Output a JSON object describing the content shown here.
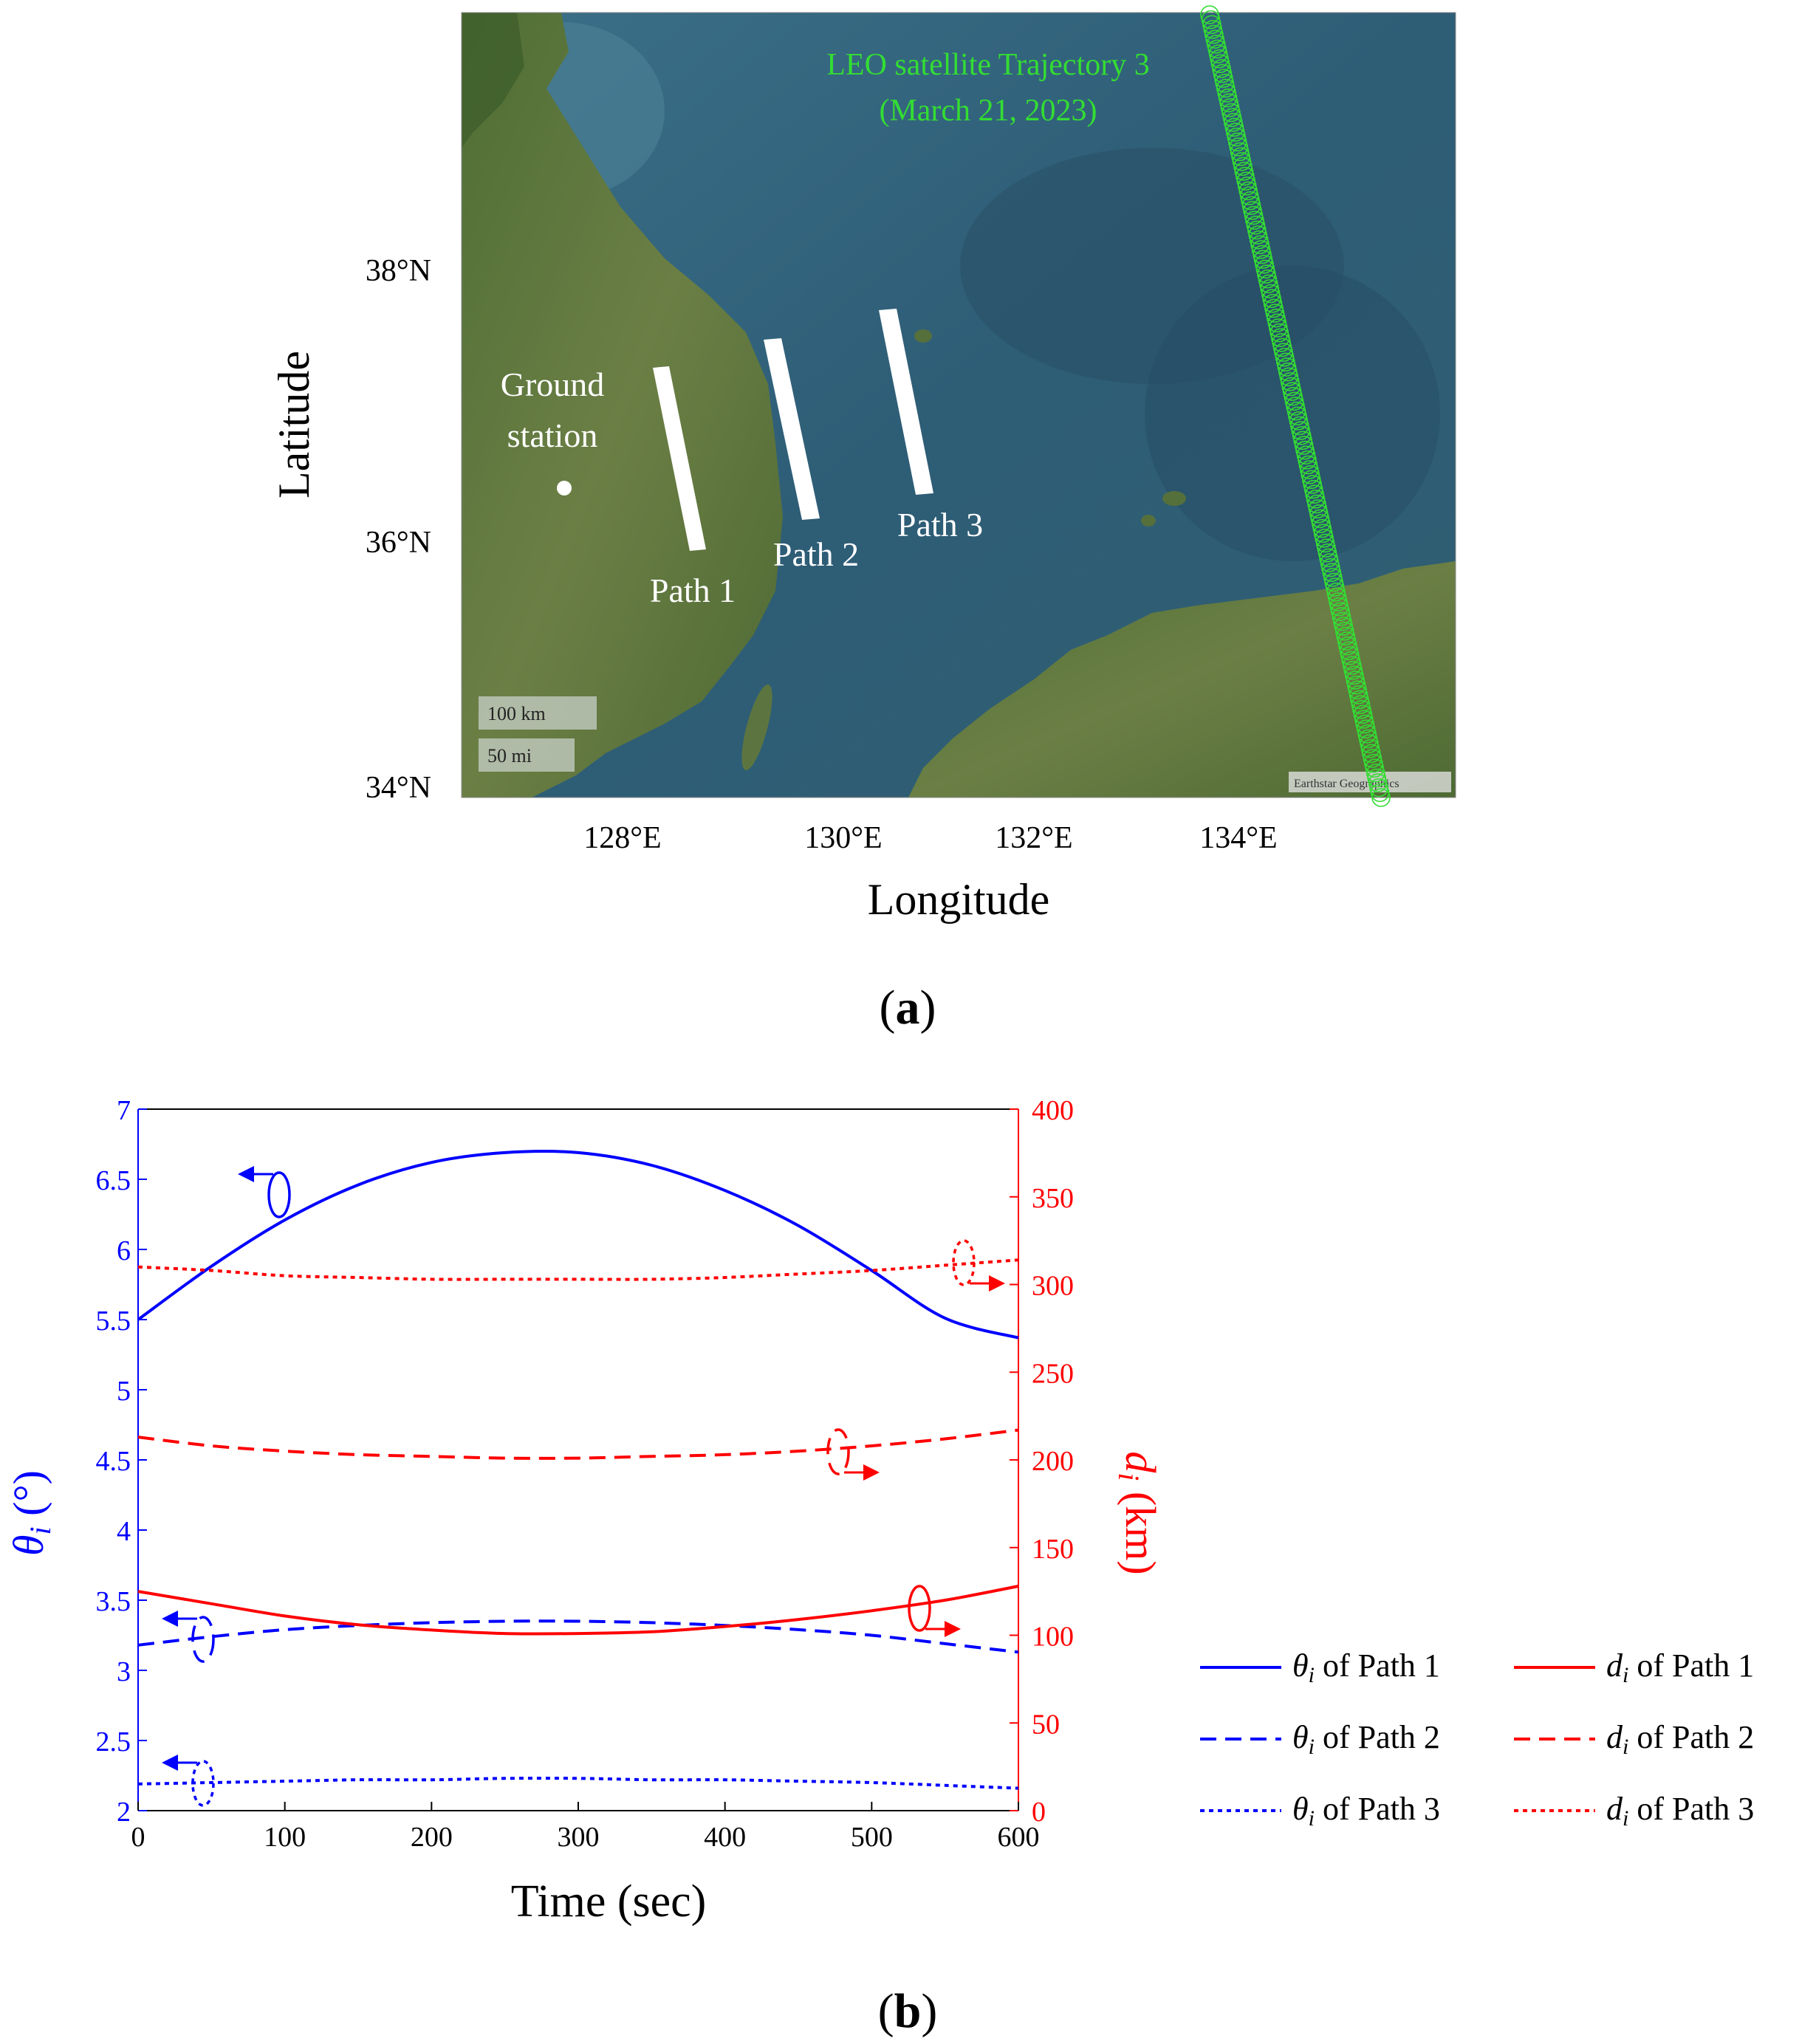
{
  "panel_a": {
    "label": "(a)",
    "xlabel": "Longitude",
    "ylabel": "Latitude",
    "lon_ticks": [
      "128°E",
      "130°E",
      "132°E",
      "134°E"
    ],
    "lat_ticks": [
      "38°N",
      "36°N",
      "34°N"
    ],
    "trajectory_label_1": "LEO satellite Trajectory 3",
    "trajectory_label_2": "(March 21, 2023)",
    "ground_station_1": "Ground",
    "ground_station_2": "station",
    "path1": "Path 1",
    "path2": "Path 2",
    "path3": "Path 3",
    "scale_km": "100 km",
    "scale_mi": "50 mi",
    "attribution": "Earthstar Geographics",
    "colors": {
      "sea": "#2f5f78",
      "land": "#5d7a3e",
      "trajectory": "#33dd33",
      "path": "#ffffff"
    }
  },
  "panel_b": {
    "label": "(b)",
    "xlabel": "Time (sec)",
    "ylabel_left": "θi (°)",
    "ylabel_right": "di (km)",
    "colors": {
      "left": "#0000ff",
      "right": "#ff0000"
    }
  },
  "chart_data": {
    "type": "line",
    "xlabel": "Time (sec)",
    "xlim": [
      0,
      600
    ],
    "xticks": [
      0,
      100,
      200,
      300,
      400,
      500,
      600
    ],
    "y_left": {
      "label": "θi (°)",
      "lim": [
        2,
        7
      ],
      "ticks": [
        "2",
        "2.5",
        "3",
        "3.5",
        "4",
        "4.5",
        "5",
        "5.5",
        "6",
        "6.5",
        "7"
      ]
    },
    "y_right": {
      "label": "di (km)",
      "lim": [
        0,
        400
      ],
      "ticks": [
        "0",
        "50",
        "100",
        "150",
        "200",
        "250",
        "300",
        "350",
        "400"
      ]
    },
    "x": [
      0,
      50,
      100,
      150,
      200,
      250,
      300,
      350,
      400,
      450,
      500,
      550,
      600
    ],
    "series": [
      {
        "name": "θi of Path 1",
        "axis": "left",
        "style": "solid",
        "color": "#0000ff",
        "values": [
          5.5,
          5.88,
          6.21,
          6.46,
          6.62,
          6.69,
          6.69,
          6.6,
          6.42,
          6.17,
          5.85,
          5.51,
          5.37
        ]
      },
      {
        "name": "θi of Path 2",
        "axis": "left",
        "style": "dashed",
        "color": "#0000ff",
        "values": [
          3.18,
          3.24,
          3.29,
          3.32,
          3.34,
          3.35,
          3.35,
          3.34,
          3.32,
          3.29,
          3.25,
          3.19,
          3.13
        ]
      },
      {
        "name": "θi of Path 3",
        "axis": "left",
        "style": "dotted",
        "color": "#0000ff",
        "values": [
          2.19,
          2.2,
          2.21,
          2.22,
          2.22,
          2.23,
          2.23,
          2.22,
          2.22,
          2.21,
          2.2,
          2.18,
          2.16
        ]
      },
      {
        "name": "di of Path 1",
        "axis": "right",
        "style": "solid",
        "color": "#ff0000",
        "values": [
          125,
          118,
          111,
          106,
          103,
          101,
          101,
          102,
          105,
          109,
          114,
          120,
          128
        ]
      },
      {
        "name": "di of Path 2",
        "axis": "right",
        "style": "dashed",
        "color": "#ff0000",
        "values": [
          213,
          208,
          205,
          203,
          202,
          201,
          201,
          202,
          203,
          205,
          208,
          212,
          217
        ]
      },
      {
        "name": "di of Path 3",
        "axis": "right",
        "style": "dotted",
        "color": "#ff0000",
        "values": [
          310,
          308,
          305,
          304,
          303,
          303,
          303,
          303,
          304,
          306,
          308,
          311,
          314
        ]
      }
    ],
    "legend_placement": "right"
  }
}
